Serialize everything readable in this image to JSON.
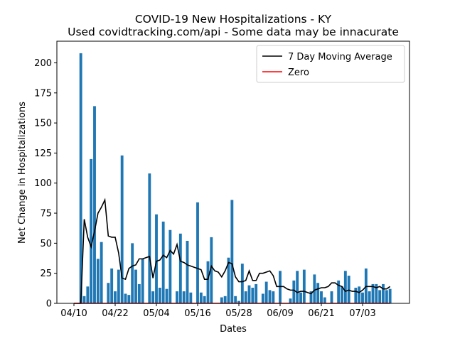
{
  "chart_data": {
    "type": "bar",
    "title": "COVID-19 New Hospitalizations - KY",
    "subtitle": "Used covidtracking.com/api - Some data may be innacurate",
    "x_label": "Dates",
    "y_label": "Net Change in Hospitalizations",
    "categories": [
      "04/10",
      null,
      null,
      null,
      null,
      null,
      null,
      null,
      null,
      null,
      null,
      null,
      "04/22",
      null,
      null,
      null,
      null,
      null,
      null,
      null,
      null,
      null,
      null,
      null,
      "05/04",
      null,
      null,
      null,
      null,
      null,
      null,
      null,
      null,
      null,
      null,
      null,
      "05/16",
      null,
      null,
      null,
      null,
      null,
      null,
      null,
      null,
      null,
      null,
      null,
      "05/28",
      null,
      null,
      null,
      null,
      null,
      null,
      null,
      null,
      null,
      null,
      null,
      "06/09",
      null,
      null,
      null,
      null,
      null,
      null,
      null,
      null,
      null,
      null,
      null,
      "06/21",
      null,
      null,
      null,
      null,
      null,
      null,
      null,
      null,
      null,
      null,
      null,
      "07/03",
      null,
      null,
      null,
      null,
      null,
      null,
      null,
      null
    ],
    "values": [
      0,
      0,
      208,
      6,
      14,
      120,
      164,
      37,
      51,
      0,
      17,
      29,
      10,
      28,
      123,
      8,
      7,
      50,
      28,
      16,
      37,
      0,
      108,
      10,
      74,
      13,
      68,
      12,
      61,
      0,
      10,
      58,
      10,
      52,
      9,
      0,
      84,
      9,
      6,
      35,
      55,
      0,
      0,
      5,
      6,
      38,
      86,
      6,
      2,
      33,
      10,
      15,
      13,
      16,
      0,
      8,
      18,
      11,
      10,
      0,
      27,
      0,
      0,
      4,
      19,
      27,
      9,
      28,
      0,
      10,
      24,
      17,
      10,
      5,
      0,
      10,
      0,
      19,
      14,
      27,
      23,
      0,
      13,
      14,
      9,
      29,
      10,
      16,
      16,
      11,
      16,
      11,
      12
    ],
    "color": "#1f77b4",
    "series": [
      {
        "name": "7 Day Moving Average",
        "color": "#000000",
        "values": [
          0,
          0,
          0,
          70,
          55,
          47,
          60,
          75,
          80,
          86,
          56,
          55,
          55,
          42,
          21,
          20,
          29,
          31,
          32,
          37,
          37,
          38,
          39,
          21,
          35,
          36,
          40,
          38,
          44,
          41,
          49,
          35,
          34,
          32,
          31,
          30,
          29,
          28,
          20,
          20,
          31,
          27,
          26,
          22,
          27,
          34,
          33,
          22,
          18,
          18,
          19,
          27,
          19,
          19,
          25,
          25,
          26,
          27,
          23,
          14,
          14,
          14,
          12,
          11,
          11,
          9,
          10,
          10,
          9,
          8,
          11,
          12,
          13,
          13,
          14,
          17,
          17,
          15,
          14,
          10,
          11,
          10,
          10,
          9,
          11,
          14,
          14,
          14,
          13,
          14,
          12,
          12,
          14
        ]
      },
      {
        "name": "Zero",
        "color": "#ff0000",
        "values": [
          0,
          0,
          0,
          0,
          0,
          0,
          0,
          0,
          0,
          0,
          0,
          0,
          0,
          0,
          0,
          0,
          0,
          0,
          0,
          0,
          0,
          0,
          0,
          0,
          0,
          0,
          0,
          0,
          0,
          0,
          0,
          0,
          0,
          0,
          0,
          0,
          0,
          0,
          0,
          0,
          0,
          0,
          0,
          0,
          0,
          0,
          0,
          0,
          0,
          0,
          0,
          0,
          0,
          0,
          0,
          0,
          0,
          0,
          0,
          0,
          0,
          0,
          0,
          0,
          0,
          0,
          0,
          0,
          0,
          0,
          0,
          0,
          0,
          0,
          0,
          0,
          0,
          0,
          0,
          0,
          0,
          0,
          0,
          0,
          0,
          0,
          0,
          0,
          0,
          0,
          0,
          0,
          0
        ]
      }
    ],
    "ylim": [
      0,
      218
    ],
    "yticks": [
      0,
      25,
      50,
      75,
      100,
      125,
      150,
      175,
      200
    ],
    "legend": "upper right"
  }
}
